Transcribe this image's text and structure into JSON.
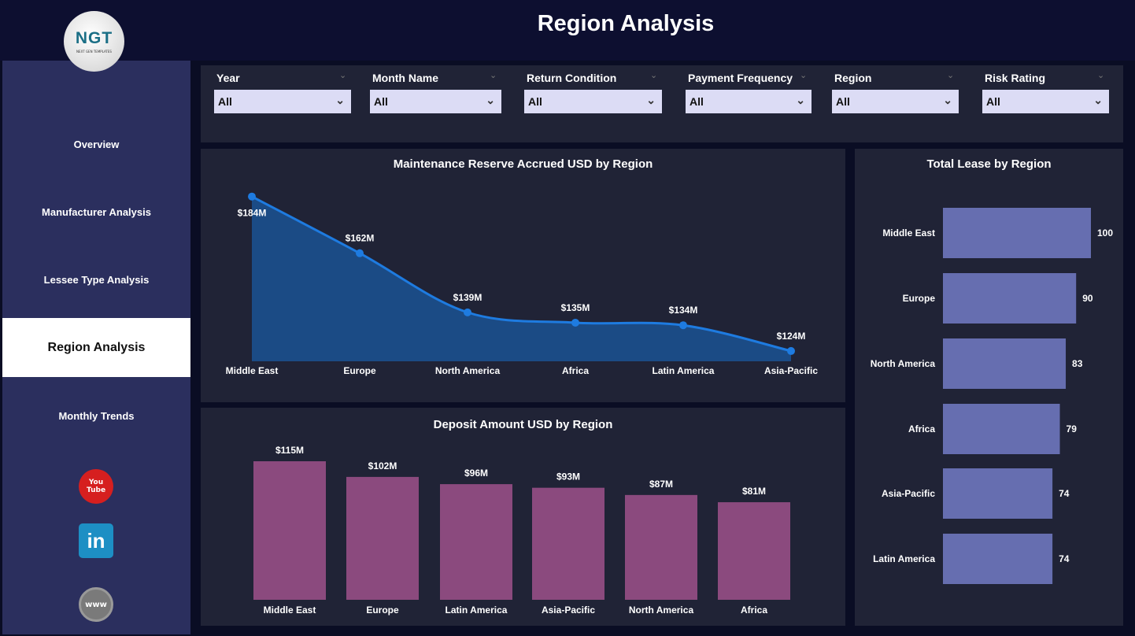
{
  "header": {
    "title": "Region Analysis",
    "logo_text": "NGT",
    "logo_subtext": "NEXT GEN TEMPLATES"
  },
  "sidebar": {
    "items": [
      {
        "label": "Overview"
      },
      {
        "label": "Manufacturer Analysis"
      },
      {
        "label": "Lessee Type Analysis"
      },
      {
        "label": "Region Analysis",
        "selected": true
      },
      {
        "label": "Monthly Trends"
      }
    ],
    "social": [
      {
        "icon": "youtube-icon",
        "text": "You Tube"
      },
      {
        "icon": "linkedin-icon",
        "text": "in"
      },
      {
        "icon": "www-globe-icon",
        "text": "www"
      }
    ]
  },
  "filters": [
    {
      "label": "Year",
      "value": "All"
    },
    {
      "label": "Month Name",
      "value": "All"
    },
    {
      "label": "Return Condition",
      "value": "All"
    },
    {
      "label": "Payment Frequency",
      "value": "All"
    },
    {
      "label": "Region",
      "value": "All"
    },
    {
      "label": "Risk Rating",
      "value": "All"
    }
  ],
  "chart_data": [
    {
      "type": "area",
      "title": "Maintenance Reserve Accrued USD by Region",
      "categories": [
        "Middle East",
        "Europe",
        "North America",
        "Africa",
        "Latin America",
        "Asia-Pacific"
      ],
      "values": [
        184,
        162,
        139,
        135,
        134,
        124
      ],
      "labels": [
        "$184M",
        "$162M",
        "$139M",
        "$135M",
        "$134M",
        "$124M"
      ],
      "unit": "USD millions",
      "ylim": [
        120,
        190
      ],
      "color": "#1e7be0",
      "fill": "#1b4b85",
      "grid": false
    },
    {
      "type": "bar",
      "title": "Deposit Amount USD by Region",
      "categories": [
        "Middle East",
        "Europe",
        "Latin America",
        "Asia-Pacific",
        "North America",
        "Africa"
      ],
      "values": [
        115,
        102,
        96,
        93,
        87,
        81
      ],
      "labels": [
        "$115M",
        "$102M",
        "$96M",
        "$93M",
        "$87M",
        "$81M"
      ],
      "unit": "USD millions",
      "ylim": [
        0,
        115
      ],
      "color": "#8b4a7e",
      "grid": false
    },
    {
      "type": "bar",
      "orientation": "horizontal",
      "title": "Total Lease by Region",
      "categories": [
        "Middle East",
        "Europe",
        "North America",
        "Africa",
        "Asia-Pacific",
        "Latin America"
      ],
      "values": [
        100,
        90,
        83,
        79,
        74,
        74
      ],
      "labels": [
        "100",
        "90",
        "83",
        "79",
        "74",
        "74"
      ],
      "xlim": [
        0,
        100
      ],
      "color": "#666eb0",
      "grid": false
    }
  ]
}
